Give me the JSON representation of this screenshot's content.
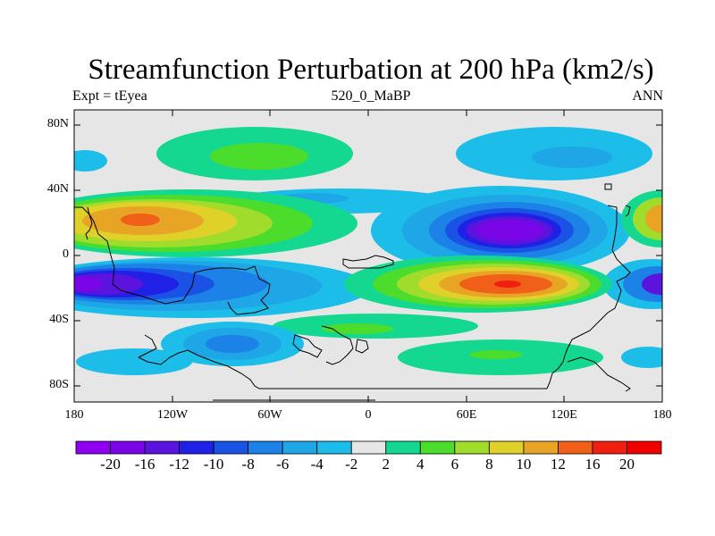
{
  "header": {
    "title": "Streamfunction Perturbation at 200 hPa (km2/s)",
    "left": "Expt = tEyea",
    "center": "520_0_MaBP",
    "right": "ANN"
  },
  "axes": {
    "x_labels": [
      "180",
      "120W",
      "60W",
      "0",
      "60E",
      "120E",
      "180"
    ],
    "y_labels": [
      "80N",
      "40N",
      "0",
      "40S",
      "80S"
    ]
  },
  "colorbar": {
    "labels": [
      "-20",
      "-16",
      "-12",
      "-10",
      "-8",
      "-6",
      "-4",
      "-2",
      "2",
      "4",
      "6",
      "8",
      "10",
      "12",
      "16",
      "20"
    ],
    "colors": [
      "#8f00f2",
      "#7a05e6",
      "#5a14de",
      "#2020e6",
      "#1a52e6",
      "#1c82e8",
      "#1ea6e6",
      "#1cbde8",
      "#e6e6e6",
      "#14d890",
      "#4cdc2c",
      "#a0dc2c",
      "#e0d02a",
      "#e8a424",
      "#f06018",
      "#f02010",
      "#f00000"
    ]
  }
}
